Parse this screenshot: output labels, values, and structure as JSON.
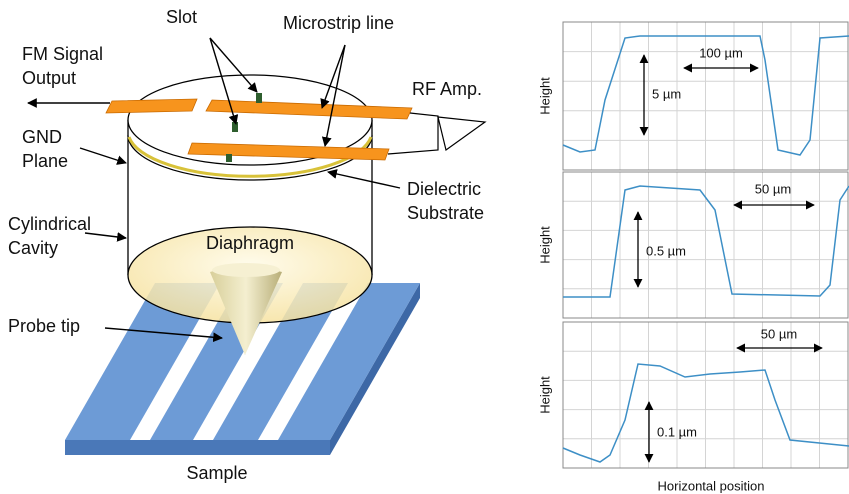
{
  "diagram": {
    "labels": {
      "slot": "Slot",
      "microstrip": "Microstrip line",
      "fm_output": [
        "FM Signal",
        "Output"
      ],
      "rf_amp": "RF Amp.",
      "gnd_plane": [
        "GND",
        "Plane"
      ],
      "dielectric": [
        "Dielectric",
        "Substrate"
      ],
      "cavity": [
        "Cylindrical",
        "Cavity"
      ],
      "diaphragm": "Diaphragm",
      "probe_tip": "Probe tip",
      "sample": "Sample"
    }
  },
  "profiles": {
    "panels": [
      {
        "y_label": "Height",
        "width_label": "100 µm",
        "height_label": "5 µm"
      },
      {
        "y_label": "Height",
        "width_label": "50 µm",
        "height_label": "0.5 µm"
      },
      {
        "y_label": "Height",
        "width_label": "50 µm",
        "height_label": "0.1 µm"
      }
    ],
    "x_label": "Horizontal position"
  }
}
